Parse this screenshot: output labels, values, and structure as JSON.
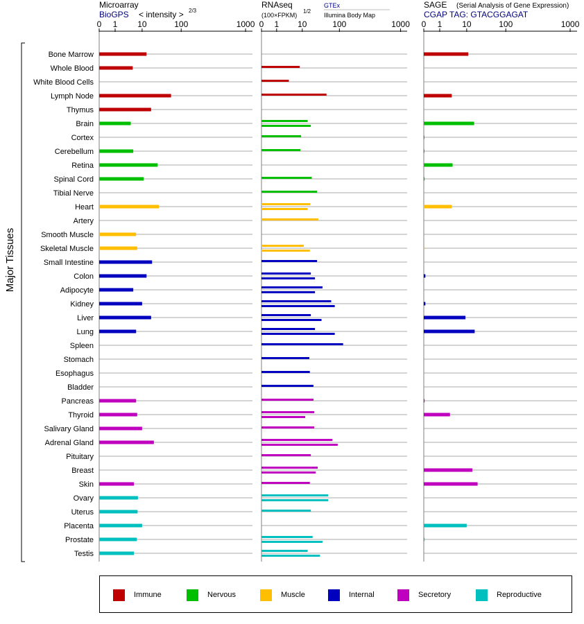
{
  "chart_data": {
    "type": "bar",
    "orientation": "horizontal",
    "ylabel": "Major Tissues",
    "scale": "log",
    "ticks": [
      "0",
      "1",
      "10",
      "100",
      "1000"
    ],
    "tissues": [
      {
        "name": "Bone Marrow",
        "group": "Immune"
      },
      {
        "name": "Whole Blood",
        "group": "Immune"
      },
      {
        "name": "White Blood Cells",
        "group": "Immune"
      },
      {
        "name": "Lymph Node",
        "group": "Immune"
      },
      {
        "name": "Thymus",
        "group": "Immune"
      },
      {
        "name": "Brain",
        "group": "Nervous"
      },
      {
        "name": "Cortex",
        "group": "Nervous"
      },
      {
        "name": "Cerebellum",
        "group": "Nervous"
      },
      {
        "name": "Retina",
        "group": "Nervous"
      },
      {
        "name": "Spinal Cord",
        "group": "Nervous"
      },
      {
        "name": "Tibial Nerve",
        "group": "Nervous"
      },
      {
        "name": "Heart",
        "group": "Muscle"
      },
      {
        "name": "Artery",
        "group": "Muscle"
      },
      {
        "name": "Smooth Muscle",
        "group": "Muscle"
      },
      {
        "name": "Skeletal Muscle",
        "group": "Muscle"
      },
      {
        "name": "Small Intestine",
        "group": "Internal"
      },
      {
        "name": "Colon",
        "group": "Internal"
      },
      {
        "name": "Adipocyte",
        "group": "Internal"
      },
      {
        "name": "Kidney",
        "group": "Internal"
      },
      {
        "name": "Liver",
        "group": "Internal"
      },
      {
        "name": "Lung",
        "group": "Internal"
      },
      {
        "name": "Spleen",
        "group": "Internal"
      },
      {
        "name": "Stomach",
        "group": "Internal"
      },
      {
        "name": "Esophagus",
        "group": "Internal"
      },
      {
        "name": "Bladder",
        "group": "Internal"
      },
      {
        "name": "Pancreas",
        "group": "Secretory"
      },
      {
        "name": "Thyroid",
        "group": "Secretory"
      },
      {
        "name": "Salivary Gland",
        "group": "Secretory"
      },
      {
        "name": "Adrenal Gland",
        "group": "Secretory"
      },
      {
        "name": "Pituitary",
        "group": "Secretory"
      },
      {
        "name": "Breast",
        "group": "Secretory"
      },
      {
        "name": "Skin",
        "group": "Secretory"
      },
      {
        "name": "Ovary",
        "group": "Reproductive"
      },
      {
        "name": "Uterus",
        "group": "Reproductive"
      },
      {
        "name": "Placenta",
        "group": "Reproductive"
      },
      {
        "name": "Prostate",
        "group": "Reproductive"
      },
      {
        "name": "Testis",
        "group": "Reproductive"
      }
    ],
    "groups": [
      {
        "name": "Immune",
        "color": "#bf0000"
      },
      {
        "name": "Nervous",
        "color": "#00bf00"
      },
      {
        "name": "Muscle",
        "color": "#ffbf00"
      },
      {
        "name": "Internal",
        "color": "#0000bf"
      },
      {
        "name": "Secretory",
        "color": "#bf00bf"
      },
      {
        "name": "Reproductive",
        "color": "#00bfbf"
      }
    ],
    "panels": [
      {
        "id": "microarray",
        "title": "Microarray",
        "source": "BioGPS",
        "unit": "< intensity >",
        "unit_exp": "2/3",
        "values": [
          [
            13
          ],
          [
            4.5
          ],
          [],
          [
            55
          ],
          [
            17
          ],
          [
            3.8
          ],
          [],
          [
            4.7
          ],
          [
            25
          ],
          [
            11
          ],
          [],
          [
            27
          ],
          [],
          [
            6
          ],
          [
            6.6
          ],
          [
            18
          ],
          [
            13
          ],
          [
            4.7
          ],
          [
            10
          ],
          [
            17
          ],
          [
            6
          ],
          [],
          [],
          [],
          [],
          [
            6
          ],
          [
            6.6
          ],
          [
            10
          ],
          [
            20
          ],
          [],
          [],
          [
            5
          ],
          [
            7
          ],
          [
            6.8
          ],
          [
            10
          ],
          [
            6.4
          ],
          [
            5
          ]
        ]
      },
      {
        "id": "rnaseq",
        "title": "RNAseq",
        "unit": "(100×FPKM)",
        "unit_exp": "1/2",
        "legend_top": "GTEx",
        "legend_bottom": "Illumina Body Map",
        "values": [
          [],
          [
            8
          ],
          [
            3
          ],
          [
            45
          ],
          [],
          [
            14,
            17
          ],
          [
            9
          ],
          [
            8.5
          ],
          [],
          [
            18
          ],
          [
            25
          ],
          [
            16.5,
            14
          ],
          [
            27
          ],
          [],
          [
            11,
            16
          ],
          [
            25
          ],
          [
            17,
            22
          ],
          [
            35,
            22
          ],
          [
            60,
            75
          ],
          [
            17,
            33
          ],
          [
            22,
            75
          ],
          [
            115
          ],
          [
            15.5
          ],
          [
            16
          ],
          [
            20
          ],
          [
            20
          ],
          [
            21,
            12
          ],
          [
            21
          ],
          [
            65,
            90
          ],
          [
            17
          ],
          [
            26,
            23
          ],
          [
            16
          ],
          [
            50,
            50
          ],
          [
            17
          ],
          [],
          [
            19,
            35
          ],
          [
            14,
            30
          ]
        ]
      },
      {
        "id": "sage",
        "title": "SAGE",
        "subtitle": "(Serial Analysis of Gene Expression)",
        "tag": "CGAP TAG: GTACGGAGAT",
        "values": [
          [
            11
          ],
          [],
          [],
          [
            2.8
          ],
          [],
          [
            15.5
          ],
          [
            0.03
          ],
          [
            0.03
          ],
          [
            3
          ],
          [
            0.05
          ],
          [],
          [
            2.8
          ],
          [],
          [],
          [
            0.05
          ],
          [],
          [
            0.1
          ],
          [],
          [
            0.1
          ],
          [
            9
          ],
          [
            16
          ],
          [],
          [],
          [],
          [],
          [
            0.05
          ],
          [
            2.4
          ],
          [],
          [],
          [],
          [
            14
          ],
          [
            19
          ],
          [],
          [],
          [
            10
          ],
          [
            0.05
          ],
          []
        ]
      }
    ]
  }
}
